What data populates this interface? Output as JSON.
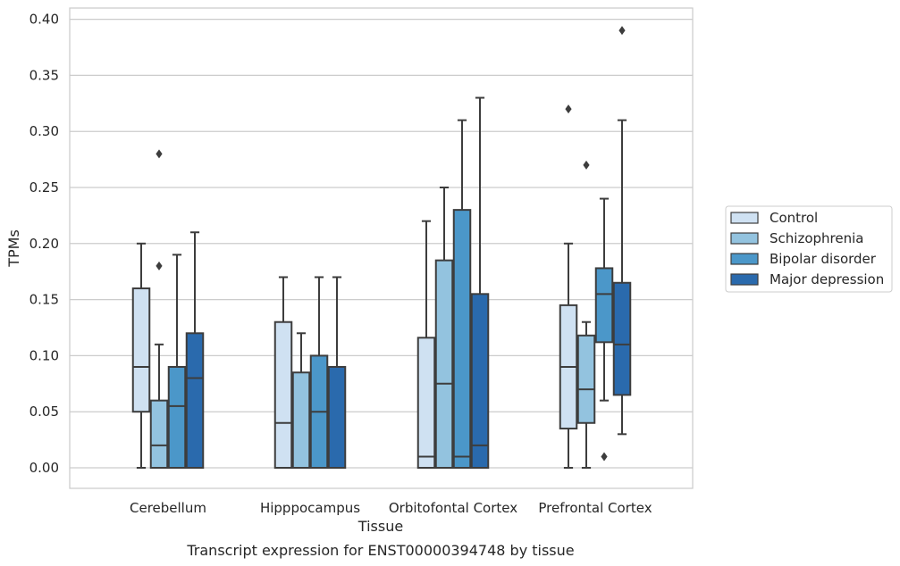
{
  "chart_data": {
    "type": "box",
    "caption": "Transcript expression for ENST00000394748 by tissue",
    "xlabel": "Tissue",
    "ylabel": "TPMs",
    "ylim": [
      -0.02,
      0.41
    ],
    "yticks": [
      "0.00",
      "0.05",
      "0.10",
      "0.15",
      "0.20",
      "0.25",
      "0.30",
      "0.35",
      "0.40"
    ],
    "grid": "horizontal",
    "legend_position": "right",
    "categories": [
      "Cerebellum",
      "Hipppocampus",
      "Orbitofontal Cortex",
      "Prefrontal Cortex"
    ],
    "series": [
      {
        "name": "Control",
        "color": "#cfe1f2",
        "boxes": [
          {
            "whislo": 0.0,
            "q1": 0.05,
            "med": 0.09,
            "q3": 0.16,
            "whishi": 0.2,
            "fliers": []
          },
          {
            "whislo": 0.0,
            "q1": 0.0,
            "med": 0.04,
            "q3": 0.13,
            "whishi": 0.17,
            "fliers": []
          },
          {
            "whislo": 0.0,
            "q1": 0.0,
            "med": 0.01,
            "q3": 0.116,
            "whishi": 0.22,
            "fliers": []
          },
          {
            "whislo": 0.0,
            "q1": 0.035,
            "med": 0.09,
            "q3": 0.145,
            "whishi": 0.2,
            "fliers": [
              0.32
            ]
          }
        ]
      },
      {
        "name": "Schizophrenia",
        "color": "#93c3df",
        "boxes": [
          {
            "whislo": 0.0,
            "q1": 0.0,
            "med": 0.02,
            "q3": 0.06,
            "whishi": 0.11,
            "fliers": [
              0.18,
              0.28
            ]
          },
          {
            "whislo": 0.0,
            "q1": 0.0,
            "med": 0.0,
            "q3": 0.085,
            "whishi": 0.12,
            "fliers": []
          },
          {
            "whislo": 0.0,
            "q1": 0.0,
            "med": 0.075,
            "q3": 0.185,
            "whishi": 0.25,
            "fliers": []
          },
          {
            "whislo": 0.0,
            "q1": 0.04,
            "med": 0.07,
            "q3": 0.118,
            "whishi": 0.13,
            "fliers": [
              0.27
            ]
          }
        ]
      },
      {
        "name": "Bipolar disorder",
        "color": "#4b97c9",
        "boxes": [
          {
            "whislo": 0.0,
            "q1": 0.0,
            "med": 0.055,
            "q3": 0.09,
            "whishi": 0.19,
            "fliers": []
          },
          {
            "whislo": 0.0,
            "q1": 0.0,
            "med": 0.05,
            "q3": 0.1,
            "whishi": 0.17,
            "fliers": []
          },
          {
            "whislo": 0.0,
            "q1": 0.0,
            "med": 0.01,
            "q3": 0.23,
            "whishi": 0.31,
            "fliers": []
          },
          {
            "whislo": 0.06,
            "q1": 0.112,
            "med": 0.155,
            "q3": 0.178,
            "whishi": 0.24,
            "fliers": [
              0.01
            ]
          }
        ]
      },
      {
        "name": "Major depression",
        "color": "#2a6aad",
        "boxes": [
          {
            "whislo": 0.0,
            "q1": 0.0,
            "med": 0.08,
            "q3": 0.12,
            "whishi": 0.21,
            "fliers": []
          },
          {
            "whislo": 0.0,
            "q1": 0.0,
            "med": 0.0,
            "q3": 0.09,
            "whishi": 0.17,
            "fliers": []
          },
          {
            "whislo": 0.0,
            "q1": 0.0,
            "med": 0.02,
            "q3": 0.155,
            "whishi": 0.33,
            "fliers": []
          },
          {
            "whislo": 0.03,
            "q1": 0.065,
            "med": 0.11,
            "q3": 0.165,
            "whishi": 0.31,
            "fliers": [
              0.39
            ]
          }
        ]
      }
    ]
  }
}
